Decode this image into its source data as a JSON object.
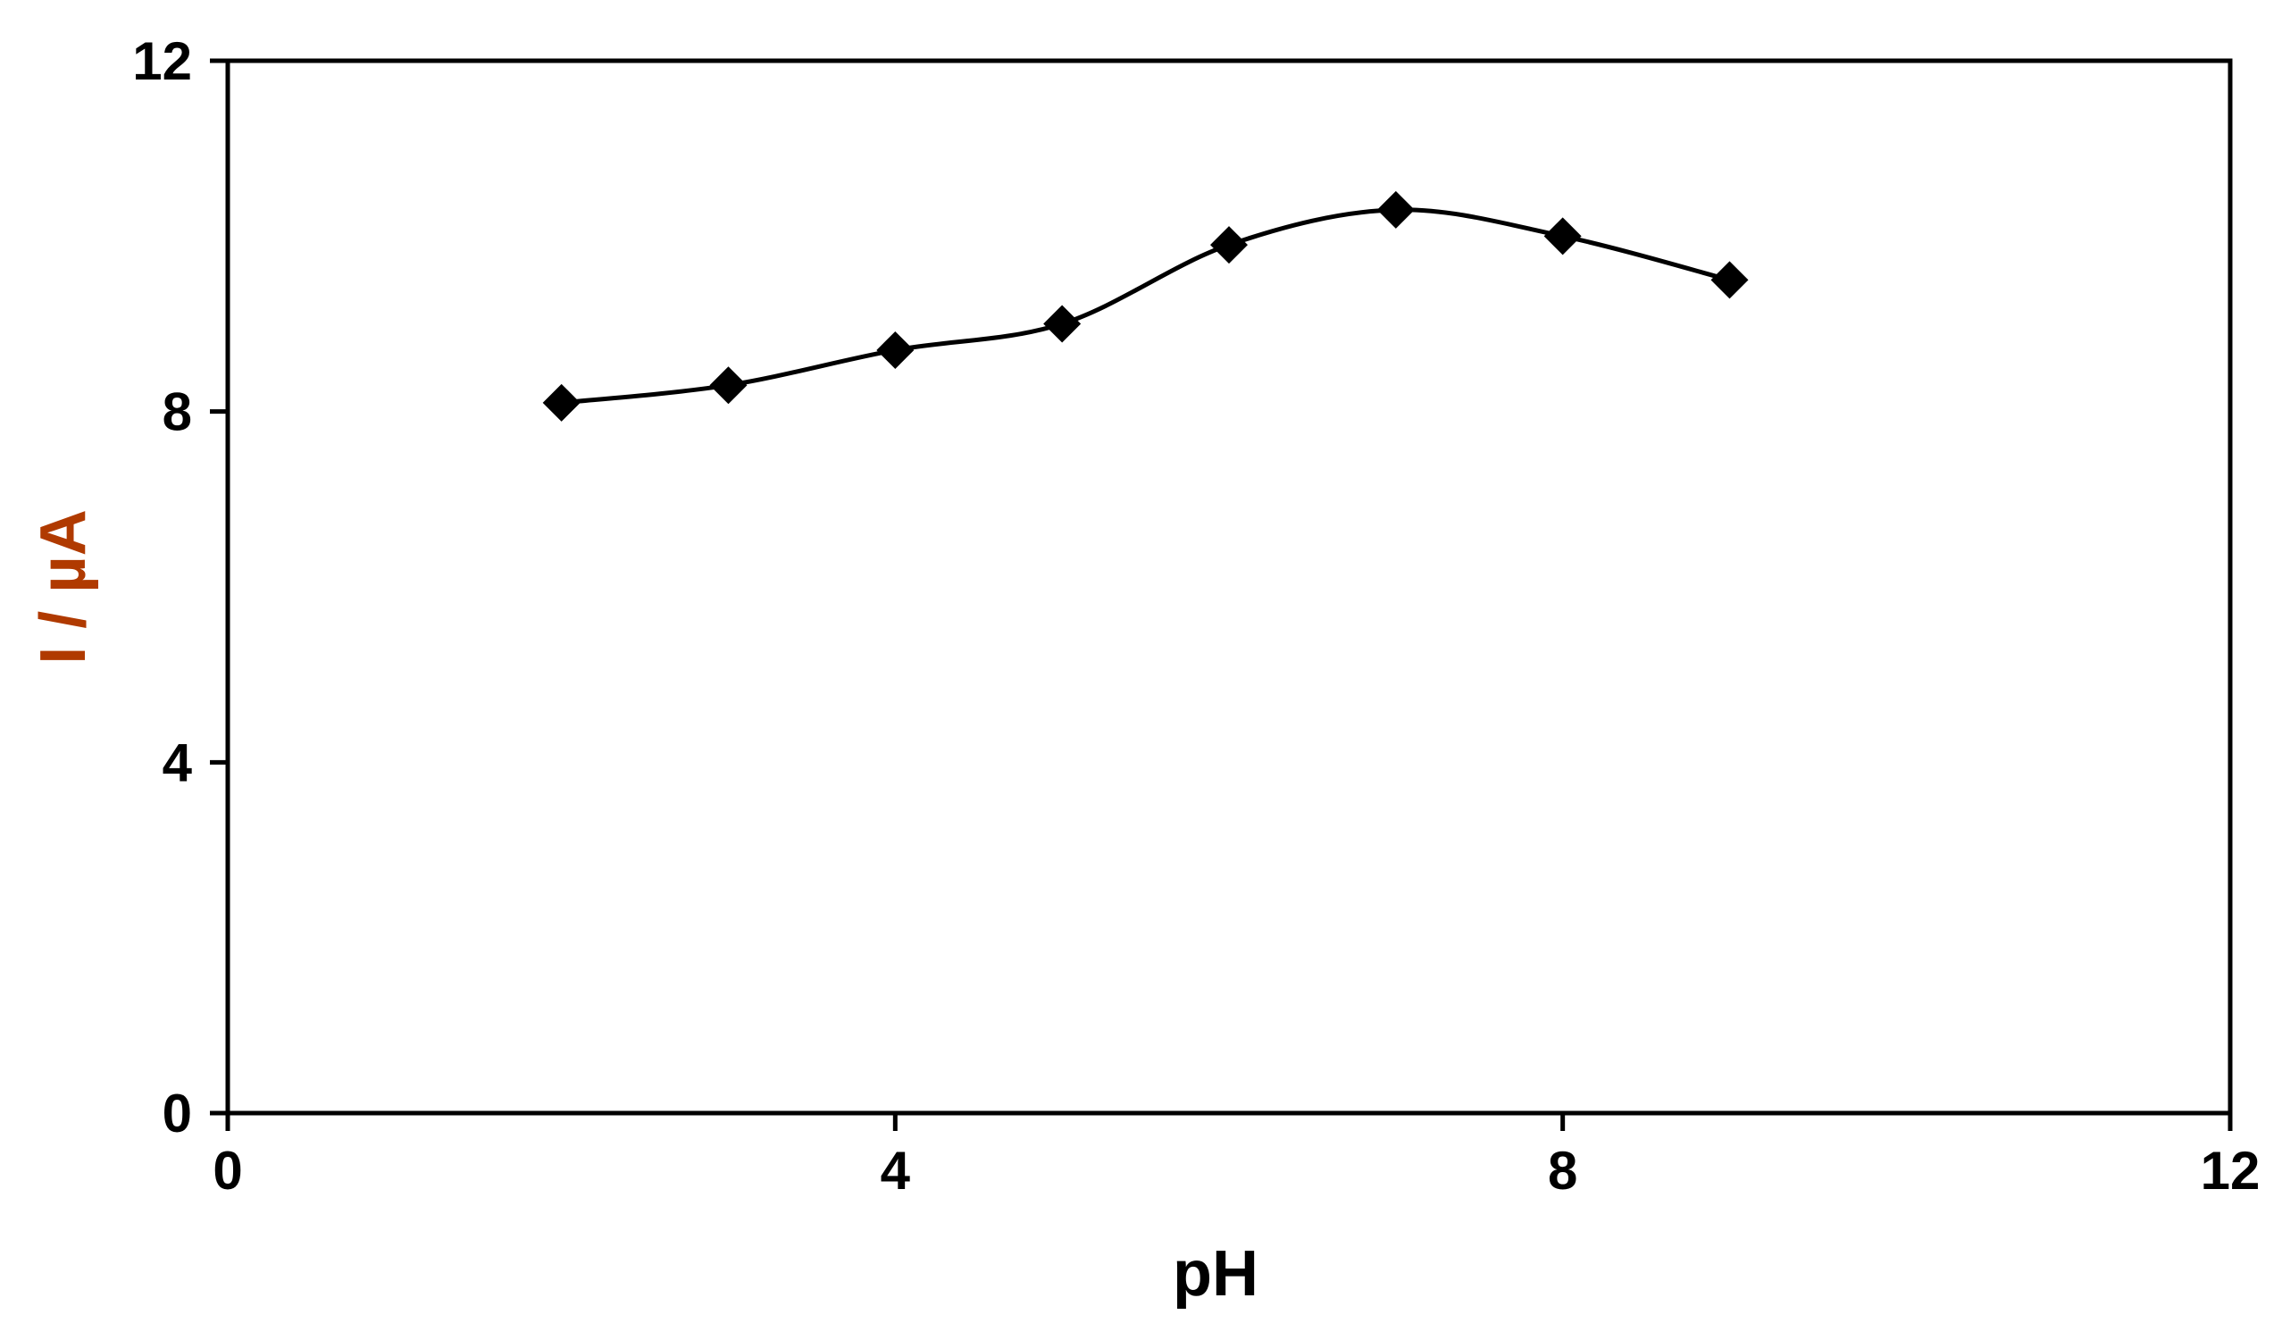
{
  "chart_data": {
    "type": "scatter",
    "title": "",
    "xlabel": "pH",
    "ylabel": "I / µA",
    "xlim": [
      0,
      12
    ],
    "ylim": [
      0,
      12
    ],
    "xticks": [
      "0",
      "4",
      "8",
      "12"
    ],
    "yticks": [
      "0",
      "4",
      "8",
      "12"
    ],
    "grid": false,
    "legend": "none",
    "series": [
      {
        "x": [
          2,
          3,
          4,
          5,
          6,
          7,
          8,
          9
        ],
        "y": [
          8.1,
          8.3,
          8.7,
          9.0,
          9.9,
          10.3,
          10.0,
          9.5
        ],
        "marker": "diamond",
        "line": "smooth"
      }
    ],
    "colors": {
      "series": "#000000",
      "axis": "#000000",
      "ylabel": "#b03a00",
      "xlabel": "#000000"
    }
  }
}
